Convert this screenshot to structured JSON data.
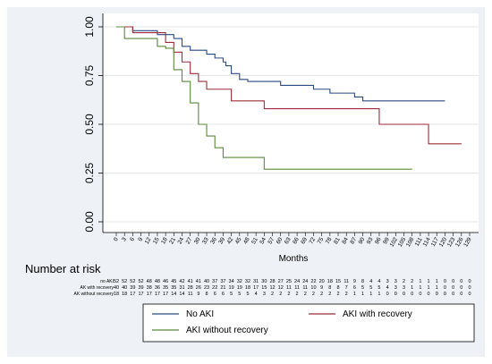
{
  "chart_data": {
    "type": "line",
    "step": true,
    "xlabel": "Months",
    "ylabel": "",
    "xlim": [
      0,
      129
    ],
    "ylim": [
      0,
      1
    ],
    "x_ticks": [
      "0",
      "3",
      "6",
      "9",
      "12",
      "15",
      "18",
      "21",
      "24",
      "27",
      "30",
      "33",
      "36",
      "39",
      "42",
      "45",
      "48",
      "51",
      "54",
      "57",
      "60",
      "63",
      "66",
      "69",
      "72",
      "75",
      "78",
      "81",
      "84",
      "87",
      "90",
      "93",
      "96",
      "99",
      "102",
      "105",
      "108",
      "111",
      "114",
      "117",
      "120",
      "123",
      "126",
      "129"
    ],
    "y_ticks": [
      "0.00",
      "0.25",
      "0.50",
      "0.75",
      "1.00"
    ],
    "legend_position": "bottom",
    "grid": true,
    "series": [
      {
        "name": "No AKI",
        "color": "#2b4a80",
        "x": [
          0,
          6,
          12,
          15,
          21,
          24,
          27,
          33,
          36,
          39,
          40,
          42,
          45,
          48,
          54,
          57,
          60,
          63,
          69,
          72,
          78,
          84,
          87,
          90,
          96,
          102,
          108,
          114,
          120
        ],
        "y": [
          1.0,
          0.98,
          0.98,
          0.96,
          0.94,
          0.9,
          0.88,
          0.86,
          0.84,
          0.82,
          0.8,
          0.76,
          0.73,
          0.72,
          0.72,
          0.72,
          0.7,
          0.7,
          0.7,
          0.68,
          0.66,
          0.66,
          0.64,
          0.62,
          0.62,
          0.62,
          0.62,
          0.62,
          0.62
        ]
      },
      {
        "name": "AKI with recovery",
        "color": "#9b2d3a",
        "x": [
          0,
          6,
          12,
          18,
          21,
          24,
          27,
          30,
          33,
          36,
          42,
          45,
          54,
          57,
          60,
          66,
          78,
          84,
          90,
          96,
          102,
          108,
          114,
          120,
          126
        ],
        "y": [
          1.0,
          0.97,
          0.97,
          0.92,
          0.87,
          0.82,
          0.76,
          0.72,
          0.68,
          0.68,
          0.62,
          0.62,
          0.58,
          0.58,
          0.58,
          0.58,
          0.58,
          0.58,
          0.58,
          0.5,
          0.5,
          0.5,
          0.4,
          0.4,
          0.4
        ]
      },
      {
        "name": "AKI without recovery",
        "color": "#5b8a3a",
        "x": [
          0,
          3,
          6,
          15,
          18,
          21,
          24,
          27,
          30,
          33,
          36,
          39,
          42,
          54,
          57,
          60,
          66,
          72,
          78,
          84,
          90,
          96,
          102,
          105,
          108
        ],
        "y": [
          1.0,
          0.94,
          0.94,
          0.9,
          0.89,
          0.78,
          0.72,
          0.61,
          0.5,
          0.44,
          0.38,
          0.33,
          0.33,
          0.27,
          0.27,
          0.27,
          0.27,
          0.27,
          0.27,
          0.27,
          0.27,
          0.27,
          0.27,
          0.27,
          0.27
        ]
      }
    ]
  },
  "risk_table": {
    "title": "Number at risk",
    "rows": [
      {
        "label": "no AKI",
        "values": [
          "52",
          "52",
          "52",
          "52",
          "48",
          "48",
          "46",
          "45",
          "42",
          "41",
          "41",
          "40",
          "37",
          "37",
          "34",
          "32",
          "32",
          "31",
          "30",
          "28",
          "27",
          "25",
          "24",
          "24",
          "22",
          "20",
          "18",
          "15",
          "11",
          "9",
          "8",
          "4",
          "4",
          "3",
          "3",
          "2",
          "2",
          "1",
          "1",
          "1",
          "0",
          "0",
          "0",
          "0"
        ]
      },
      {
        "label": "AK with recovery",
        "values": [
          "40",
          "40",
          "39",
          "39",
          "38",
          "36",
          "35",
          "35",
          "31",
          "28",
          "26",
          "23",
          "22",
          "21",
          "19",
          "19",
          "18",
          "17",
          "15",
          "12",
          "12",
          "11",
          "11",
          "11",
          "10",
          "9",
          "8",
          "8",
          "7",
          "6",
          "5",
          "5",
          "5",
          "4",
          "3",
          "3",
          "1",
          "1",
          "1",
          "1",
          "0",
          "0",
          "0",
          "0"
        ]
      },
      {
        "label": "AK without recovery",
        "values": [
          "18",
          "18",
          "17",
          "17",
          "17",
          "17",
          "17",
          "14",
          "14",
          "11",
          "9",
          "8",
          "6",
          "6",
          "5",
          "5",
          "5",
          "4",
          "3",
          "2",
          "2",
          "2",
          "2",
          "2",
          "2",
          "2",
          "2",
          "2",
          "2",
          "1",
          "1",
          "1",
          "1",
          "0",
          "0",
          "0",
          "0",
          "0",
          "0",
          "0",
          "0",
          "0",
          "0",
          "0"
        ]
      }
    ]
  }
}
